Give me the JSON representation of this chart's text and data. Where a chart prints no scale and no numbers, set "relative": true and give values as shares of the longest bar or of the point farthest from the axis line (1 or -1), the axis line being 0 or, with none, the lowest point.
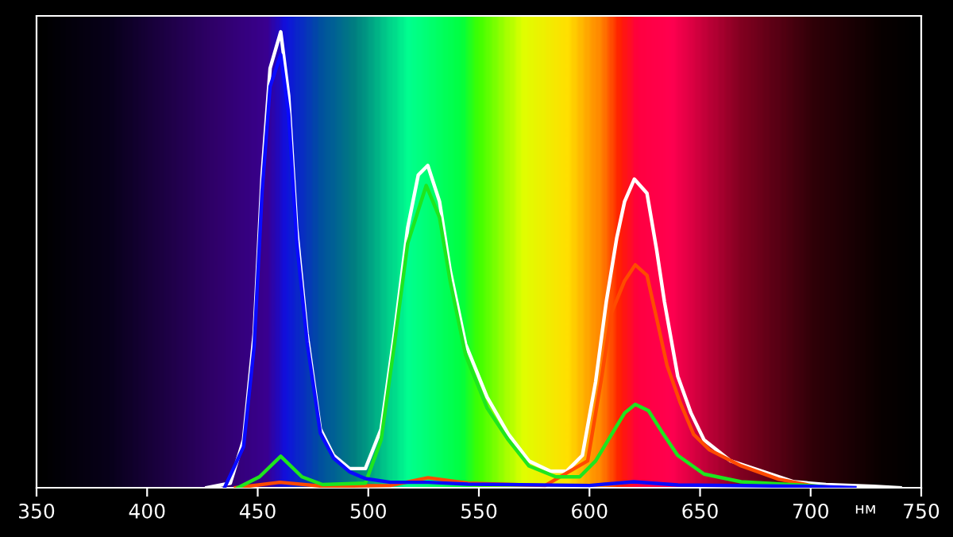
{
  "chart_data": {
    "type": "line",
    "relative": true,
    "xlabel": "нм",
    "xlim": [
      350,
      750
    ],
    "xticks": [
      350,
      400,
      450,
      500,
      550,
      600,
      650,
      700,
      750
    ],
    "grid": false,
    "legend": false,
    "marker": "none",
    "line_style": "solid",
    "series": [
      {
        "color": "#ffffff",
        "x": [
          427,
          437.6,
          443.6,
          448.4,
          452,
          455.6,
          460.4,
          464,
          467.6,
          472.3,
          478.3,
          484.3,
          491.5,
          498.7,
          505.8,
          511.8,
          517.8,
          522.6,
          526.9,
          532.2,
          537,
          544,
          553.7,
          563.3,
          572.6,
          582.4,
          589.6,
          596.8,
          602.8,
          607.6,
          612.3,
          615.9,
          620.3,
          626,
          630.3,
          633.9,
          639.9,
          645.9,
          651.8,
          663.8,
          678.2,
          692.5,
          706.9,
          728.5,
          740.5
        ],
        "values": [
          0,
          0.01,
          0.105,
          0.338,
          0.686,
          0.92,
          1.0,
          0.86,
          0.57,
          0.338,
          0.129,
          0.071,
          0.042,
          0.042,
          0.129,
          0.338,
          0.57,
          0.686,
          0.707,
          0.628,
          0.477,
          0.315,
          0.199,
          0.118,
          0.059,
          0.036,
          0.036,
          0.071,
          0.233,
          0.408,
          0.547,
          0.628,
          0.677,
          0.646,
          0.524,
          0.408,
          0.245,
          0.164,
          0.105,
          0.059,
          0.036,
          0.013,
          0.007,
          0.003,
          0
        ]
      },
      {
        "color": "#ff4a00",
        "x": [
          440,
          460,
          480,
          510,
          527,
          545,
          580,
          599.2,
          605.2,
          610,
          615.9,
          620.7,
          626,
          630.3,
          635.1,
          641,
          647.1,
          654.3,
          668.6,
          685.4,
          702,
          715
        ],
        "values": [
          0,
          0.012,
          0.003,
          0.005,
          0.022,
          0.01,
          0.005,
          0.059,
          0.233,
          0.384,
          0.454,
          0.489,
          0.466,
          0.373,
          0.268,
          0.187,
          0.117,
          0.083,
          0.048,
          0.019,
          0.003,
          0
        ]
      },
      {
        "color": "#1ee61e",
        "x": [
          441,
          450.8,
          460.4,
          470,
          479.3,
          498.7,
          505.8,
          511.8,
          517.8,
          526.2,
          532.2,
          537,
          544,
          553.7,
          563.3,
          572.6,
          584.8,
          595.6,
          602.8,
          610,
          615.9,
          620.7,
          626.7,
          632.7,
          639.9,
          651.8,
          668.6,
          702,
          710
        ],
        "values": [
          0,
          0.024,
          0.069,
          0.024,
          0.007,
          0.01,
          0.105,
          0.315,
          0.536,
          0.663,
          0.593,
          0.454,
          0.291,
          0.175,
          0.105,
          0.048,
          0.024,
          0.024,
          0.059,
          0.117,
          0.164,
          0.183,
          0.169,
          0.123,
          0.071,
          0.03,
          0.013,
          0.004,
          0
        ]
      },
      {
        "color": "#0a0aff",
        "x": [
          435,
          443.6,
          448.4,
          452,
          455.6,
          460.4,
          464,
          467.6,
          472.3,
          478.3,
          484.3,
          491.5,
          498.7,
          510,
          527,
          545,
          600,
          620,
          640,
          700,
          720
        ],
        "values": [
          0,
          0.09,
          0.31,
          0.65,
          0.88,
          0.95,
          0.82,
          0.54,
          0.32,
          0.12,
          0.065,
          0.035,
          0.02,
          0.012,
          0.012,
          0.008,
          0.005,
          0.013,
          0.006,
          0.003,
          0
        ]
      }
    ]
  }
}
